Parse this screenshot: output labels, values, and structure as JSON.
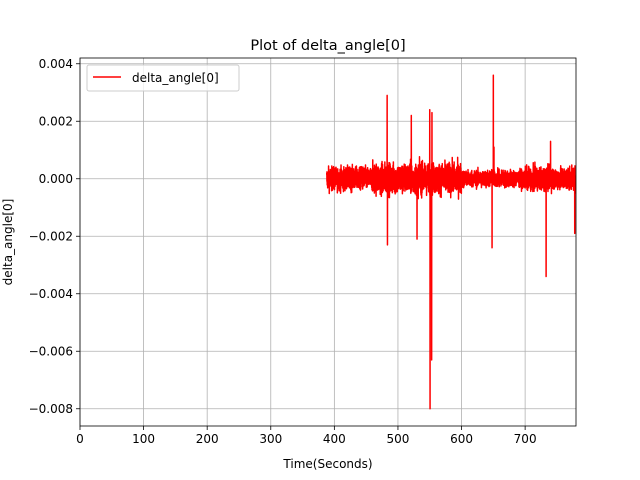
{
  "chart_data": {
    "type": "line",
    "title": "Plot of delta_angle[0]",
    "xlabel": "Time(Seconds)",
    "ylabel": "delta_angle[0]",
    "xlim": [
      0,
      780
    ],
    "ylim": [
      -0.0086,
      0.0042
    ],
    "xticks": [
      0,
      100,
      200,
      300,
      400,
      500,
      600,
      700
    ],
    "xtick_labels": [
      "0",
      "100",
      "200",
      "300",
      "400",
      "500",
      "600",
      "700"
    ],
    "yticks": [
      -0.008,
      -0.006,
      -0.004,
      -0.002,
      0.0,
      0.002,
      0.004
    ],
    "ytick_labels": [
      "−0.008",
      "−0.006",
      "−0.004",
      "−0.002",
      "0.000",
      "0.002",
      "0.004"
    ],
    "grid": true,
    "legend_position": "upper-left",
    "series": [
      {
        "name": "delta_angle[0]",
        "color": "#ff0000",
        "x_start": 388,
        "x_end": 780,
        "noise_amplitude": 0.0007,
        "spikes": [
          {
            "x": 483,
            "y": 0.0029
          },
          {
            "x": 483.5,
            "y": -0.0023
          },
          {
            "x": 521,
            "y": 0.0022
          },
          {
            "x": 530,
            "y": -0.0021
          },
          {
            "x": 550,
            "y": 0.0024
          },
          {
            "x": 550.5,
            "y": -0.008
          },
          {
            "x": 553,
            "y": -0.0063
          },
          {
            "x": 553.5,
            "y": 0.0023
          },
          {
            "x": 648,
            "y": -0.0024
          },
          {
            "x": 650,
            "y": 0.0036
          },
          {
            "x": 651,
            "y": 0.0011
          },
          {
            "x": 733,
            "y": -0.0034
          },
          {
            "x": 740,
            "y": 0.0013
          },
          {
            "x": 778,
            "y": -0.0019
          }
        ]
      }
    ]
  }
}
